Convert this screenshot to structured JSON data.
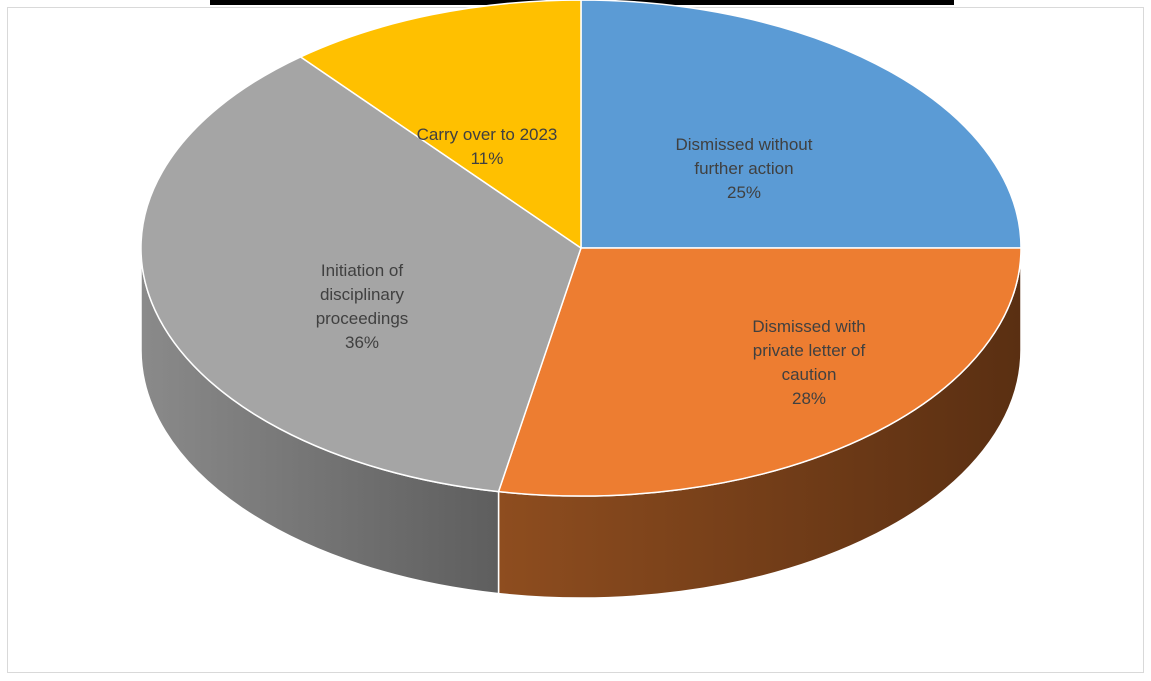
{
  "chart_data": {
    "type": "pie",
    "style": "3d",
    "title": "",
    "slices": [
      {
        "label": "Dismissed without further action",
        "label_lines": [
          "Dismissed without",
          "further action"
        ],
        "percent_label": "25%",
        "value": 25,
        "color": "#5b9bd5"
      },
      {
        "label": "Dismissed with private letter of caution",
        "label_lines": [
          "Dismissed with",
          "private letter of",
          "caution"
        ],
        "percent_label": "28%",
        "value": 28,
        "color": "#ed7d31"
      },
      {
        "label": "Initiation of disciplinary proceedings",
        "label_lines": [
          "Initiation of",
          "disciplinary",
          "proceedings"
        ],
        "percent_label": "36%",
        "value": 36,
        "color": "#a5a5a5"
      },
      {
        "label": "Carry over to 2023",
        "label_lines": [
          "Carry over to 2023"
        ],
        "percent_label": "11%",
        "value": 11,
        "color": "#ffc000"
      }
    ],
    "legend": "none",
    "data_labels": "inside"
  }
}
